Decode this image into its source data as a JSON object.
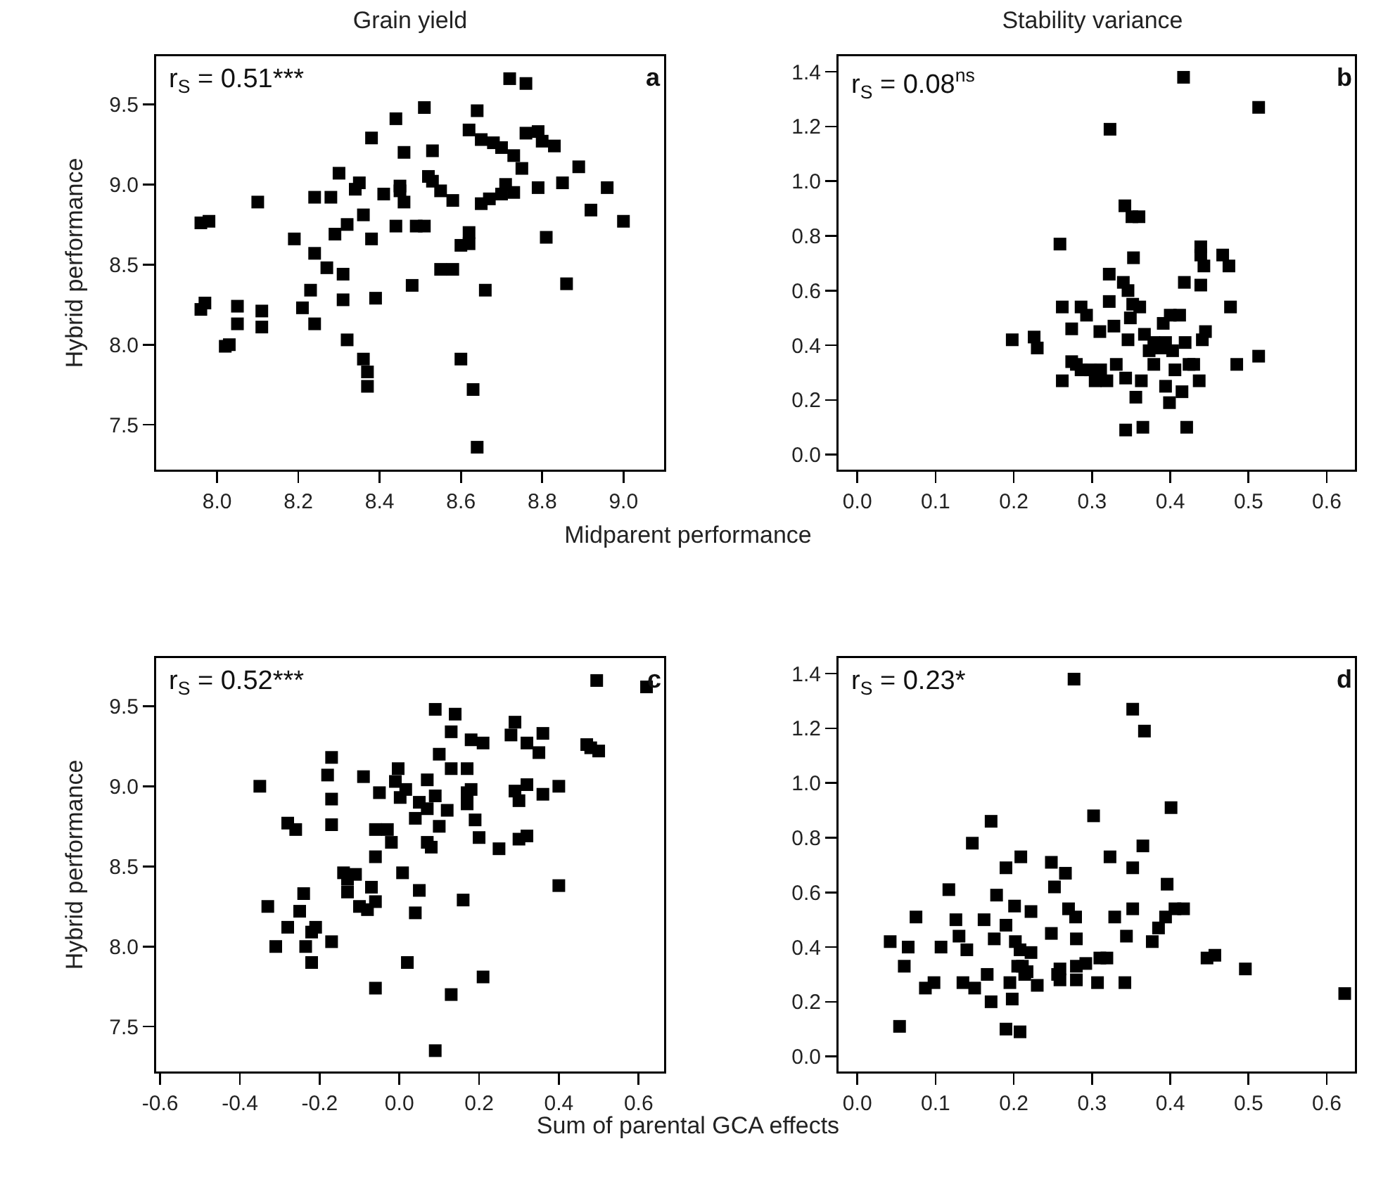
{
  "chart_data": [
    {
      "type": "scatter",
      "title": "Grain yield",
      "ylabel": "Hybrid performance",
      "xlabel": "Midparent performance",
      "marker": "square",
      "color": "#000000",
      "annotations": [
        "r$_{S}$ = 0.51***",
        "a"
      ],
      "xlim": [
        7.85,
        9.1
      ],
      "ylim": [
        7.22,
        9.8
      ],
      "xticks": [
        {
          "value": 8,
          "label": "8.0"
        },
        8.2,
        8.4,
        8.6,
        8.8,
        {
          "value": 9,
          "label": "9.0"
        }
      ],
      "yticks": [
        7.5,
        {
          "value": 8,
          "label": "8.0"
        },
        8.5,
        {
          "value": 9,
          "label": "9.0"
        },
        9.5
      ],
      "x": [
        7.96,
        7.98,
        7.96,
        7.97,
        8.02,
        8.03,
        8.05,
        8.05,
        8.1,
        8.11,
        8.11,
        8.19,
        8.21,
        8.23,
        8.24,
        8.24,
        8.24,
        8.28,
        8.27,
        8.29,
        8.3,
        8.31,
        8.31,
        8.32,
        8.32,
        8.34,
        8.35,
        8.36,
        8.36,
        8.37,
        8.37,
        8.38,
        8.38,
        8.39,
        8.41,
        8.44,
        8.44,
        8.45,
        8.45,
        8.46,
        8.46,
        8.48,
        8.49,
        8.51,
        8.51,
        8.53,
        8.52,
        8.53,
        8.55,
        8.55,
        8.58,
        8.58,
        8.6,
        8.62,
        8.62,
        8.6,
        8.62,
        8.64,
        8.63,
        8.64,
        8.65,
        8.66,
        8.65,
        8.67,
        8.68,
        8.7,
        8.7,
        8.71,
        8.73,
        8.72,
        8.73,
        8.75,
        8.76,
        8.76,
        8.79,
        8.79,
        8.8,
        8.81,
        8.83,
        8.85,
        8.86,
        8.89,
        8.92,
        8.96,
        9.0
      ],
      "values": [
        8.76,
        8.77,
        8.22,
        8.26,
        7.99,
        8.0,
        8.13,
        8.24,
        8.89,
        8.11,
        8.21,
        8.66,
        8.23,
        8.34,
        8.13,
        8.57,
        8.92,
        8.92,
        8.48,
        8.69,
        9.07,
        8.44,
        8.28,
        8.03,
        8.75,
        8.97,
        9.01,
        8.81,
        7.91,
        7.83,
        7.74,
        8.66,
        9.29,
        8.29,
        8.94,
        8.74,
        9.41,
        8.96,
        8.99,
        9.2,
        8.89,
        8.37,
        8.74,
        9.48,
        8.74,
        9.21,
        9.05,
        9.02,
        8.47,
        8.96,
        8.9,
        8.47,
        8.62,
        8.7,
        8.63,
        7.91,
        9.34,
        9.46,
        7.72,
        7.36,
        9.28,
        8.34,
        8.88,
        8.91,
        9.26,
        9.23,
        8.94,
        9.0,
        8.95,
        9.66,
        9.18,
        9.1,
        9.63,
        9.32,
        9.33,
        8.98,
        9.27,
        8.67,
        9.24,
        9.01,
        8.38,
        9.11,
        8.84,
        8.98,
        8.77
      ]
    },
    {
      "type": "scatter",
      "title": "Stability variance",
      "marker": "square",
      "color": "#000000",
      "annotations": [
        "r$_{S}$ = 0.08$^{ns}$",
        "b"
      ],
      "xlim": [
        -0.024,
        0.636
      ],
      "ylim": [
        -0.055,
        1.457
      ],
      "xticks": [
        {
          "value": 0,
          "label": "0.0"
        },
        0.1,
        0.2,
        0.3,
        0.4,
        0.5,
        0.6
      ],
      "yticks": [
        {
          "value": 0,
          "label": "0.0"
        },
        0.2,
        0.4,
        0.6,
        0.8,
        {
          "value": 1,
          "label": "1.0"
        },
        1.2,
        1.4
      ],
      "x": [
        0.198,
        0.226,
        0.23,
        0.259,
        0.262,
        0.262,
        0.274,
        0.28,
        0.286,
        0.293,
        0.298,
        0.304,
        0.31,
        0.311,
        0.319,
        0.322,
        0.322,
        0.323,
        0.331,
        0.328,
        0.34,
        0.342,
        0.346,
        0.346,
        0.343,
        0.343,
        0.351,
        0.36,
        0.353,
        0.352,
        0.361,
        0.349,
        0.363,
        0.356,
        0.365,
        0.367,
        0.373,
        0.379,
        0.379,
        0.391,
        0.394,
        0.399,
        0.4,
        0.403,
        0.406,
        0.412,
        0.415,
        0.417,
        0.418,
        0.419,
        0.421,
        0.424,
        0.43,
        0.437,
        0.439,
        0.439,
        0.439,
        0.443,
        0.441,
        0.445,
        0.467,
        0.475,
        0.477,
        0.485,
        0.513,
        0.513,
        0.394,
        0.388,
        0.286,
        0.274
      ],
      "values": [
        0.42,
        0.43,
        0.39,
        0.77,
        0.54,
        0.27,
        0.46,
        0.33,
        0.54,
        0.51,
        0.31,
        0.27,
        0.45,
        0.31,
        0.27,
        0.56,
        0.66,
        1.19,
        0.33,
        0.47,
        0.63,
        0.91,
        0.6,
        0.42,
        0.28,
        0.09,
        0.87,
        0.87,
        0.72,
        0.55,
        0.54,
        0.5,
        0.27,
        0.21,
        0.1,
        0.44,
        0.38,
        0.33,
        0.41,
        0.48,
        0.25,
        0.19,
        0.51,
        0.38,
        0.31,
        0.51,
        0.23,
        1.38,
        0.63,
        0.41,
        0.1,
        0.33,
        0.33,
        0.27,
        0.62,
        0.76,
        0.73,
        0.69,
        0.42,
        0.45,
        0.73,
        0.69,
        0.54,
        0.33,
        1.27,
        0.36,
        0.41,
        0.39,
        0.31,
        0.34
      ]
    },
    {
      "type": "scatter",
      "ylabel": "Hybrid performance",
      "xlabel": "Sum of parental GCA effects",
      "marker": "square",
      "color": "#000000",
      "annotations": [
        "r$_{S}$ = 0.52***",
        "c"
      ],
      "xlim": [
        -0.61,
        0.664
      ],
      "ylim": [
        7.22,
        9.8
      ],
      "xticks": [
        -0.6,
        -0.4,
        -0.2,
        {
          "value": 0,
          "label": "0.0"
        },
        0.2,
        0.4,
        0.6
      ],
      "yticks": [
        7.5,
        {
          "value": 8,
          "label": "8.0"
        },
        8.5,
        {
          "value": 9,
          "label": "9.0"
        },
        9.5
      ],
      "x": [
        -0.35,
        -0.28,
        -0.26,
        -0.33,
        -0.31,
        -0.28,
        -0.25,
        -0.24,
        -0.235,
        -0.22,
        -0.22,
        -0.21,
        -0.18,
        -0.17,
        -0.17,
        -0.17,
        -0.17,
        -0.14,
        -0.13,
        -0.11,
        -0.13,
        -0.1,
        -0.08,
        -0.07,
        -0.06,
        -0.06,
        -0.06,
        -0.09,
        -0.06,
        -0.03,
        -0.02,
        -0.05,
        -0.003,
        -0.01,
        0.002,
        0.016,
        0.008,
        0.02,
        0.04,
        0.04,
        0.05,
        0.05,
        0.07,
        0.07,
        0.08,
        0.07,
        0.09,
        0.09,
        0.09,
        0.1,
        0.1,
        0.12,
        0.13,
        0.13,
        0.13,
        0.14,
        0.16,
        0.17,
        0.17,
        0.18,
        0.17,
        0.19,
        0.21,
        0.18,
        0.21,
        0.2,
        0.25,
        0.28,
        0.29,
        0.29,
        0.3,
        0.3,
        0.32,
        0.32,
        0.32,
        0.35,
        0.36,
        0.36,
        0.4,
        0.4,
        0.47,
        0.48,
        0.5,
        0.495,
        0.62
      ],
      "values": [
        9.0,
        8.77,
        8.73,
        8.25,
        8.0,
        8.12,
        8.22,
        8.33,
        8.0,
        7.9,
        8.09,
        8.12,
        9.07,
        9.18,
        8.92,
        8.76,
        8.03,
        8.46,
        8.42,
        8.45,
        8.34,
        8.25,
        8.23,
        8.37,
        8.28,
        8.56,
        7.74,
        9.06,
        8.73,
        8.73,
        8.65,
        8.96,
        9.11,
        9.03,
        8.93,
        8.98,
        8.46,
        7.9,
        8.8,
        8.21,
        8.35,
        8.9,
        9.04,
        8.65,
        8.62,
        8.86,
        8.94,
        9.48,
        7.35,
        8.75,
        9.2,
        8.85,
        9.34,
        9.11,
        7.7,
        9.45,
        8.29,
        9.11,
        8.96,
        8.98,
        8.89,
        8.79,
        7.81,
        9.29,
        9.27,
        8.68,
        8.61,
        9.32,
        9.4,
        8.97,
        8.91,
        8.67,
        8.69,
        9.01,
        9.27,
        9.21,
        9.33,
        8.95,
        9.0,
        8.38,
        9.26,
        9.24,
        9.22,
        9.66,
        9.62
      ]
    },
    {
      "type": "scatter",
      "marker": "square",
      "color": "#000000",
      "annotations": [
        "r$_{S}$ = 0.23*",
        "d"
      ],
      "xlim": [
        -0.024,
        0.636
      ],
      "ylim": [
        -0.055,
        1.457
      ],
      "xticks": [
        {
          "value": 0,
          "label": "0.0"
        },
        0.1,
        0.2,
        0.3,
        0.4,
        0.5,
        0.6
      ],
      "yticks": [
        {
          "value": 0,
          "label": "0.0"
        },
        0.2,
        0.4,
        0.6,
        0.8,
        {
          "value": 1,
          "label": "1.0"
        },
        1.2,
        1.4
      ],
      "x": [
        0.042,
        0.054,
        0.06,
        0.065,
        0.075,
        0.087,
        0.098,
        0.107,
        0.117,
        0.126,
        0.13,
        0.135,
        0.14,
        0.147,
        0.15,
        0.162,
        0.166,
        0.171,
        0.171,
        0.178,
        0.175,
        0.19,
        0.19,
        0.19,
        0.195,
        0.198,
        0.201,
        0.202,
        0.208,
        0.209,
        0.208,
        0.211,
        0.217,
        0.222,
        0.222,
        0.23,
        0.248,
        0.252,
        0.248,
        0.256,
        0.259,
        0.259,
        0.266,
        0.27,
        0.279,
        0.277,
        0.28,
        0.28,
        0.28,
        0.292,
        0.302,
        0.307,
        0.31,
        0.319,
        0.323,
        0.329,
        0.342,
        0.344,
        0.352,
        0.352,
        0.352,
        0.365,
        0.367,
        0.377,
        0.385,
        0.394,
        0.396,
        0.401,
        0.406,
        0.417,
        0.447,
        0.457,
        0.496,
        0.623,
        0.205,
        0.214
      ],
      "values": [
        0.42,
        0.11,
        0.33,
        0.4,
        0.51,
        0.25,
        0.27,
        0.4,
        0.61,
        0.5,
        0.44,
        0.27,
        0.39,
        0.78,
        0.25,
        0.5,
        0.3,
        0.2,
        0.86,
        0.59,
        0.43,
        0.69,
        0.48,
        0.1,
        0.27,
        0.21,
        0.55,
        0.42,
        0.39,
        0.73,
        0.09,
        0.33,
        0.31,
        0.38,
        0.53,
        0.26,
        0.71,
        0.62,
        0.45,
        0.3,
        0.32,
        0.28,
        0.67,
        0.54,
        0.51,
        1.38,
        0.43,
        0.28,
        0.33,
        0.34,
        0.88,
        0.27,
        0.36,
        0.36,
        0.73,
        0.51,
        0.27,
        0.44,
        1.27,
        0.69,
        0.54,
        0.77,
        1.19,
        0.42,
        0.47,
        0.51,
        0.63,
        0.91,
        0.54,
        0.54,
        0.36,
        0.37,
        0.32,
        0.23,
        0.33,
        0.3
      ]
    }
  ]
}
